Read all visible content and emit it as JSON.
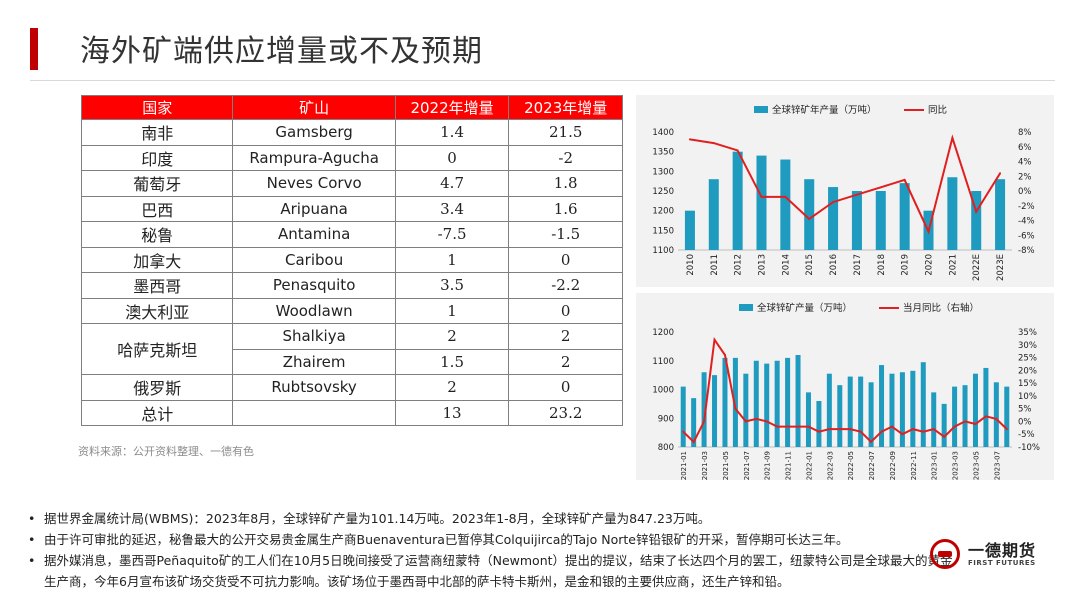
{
  "title": "海外矿端供应增量或不及预期",
  "table": {
    "headers": [
      "国家",
      "矿山",
      "2022年增量",
      "2023年增量"
    ],
    "rows": [
      {
        "country": "南非",
        "mine": "Gamsberg",
        "y2022": "1.4",
        "y2023": "21.5"
      },
      {
        "country": "印度",
        "mine": "Rampura-Agucha",
        "y2022": "0",
        "y2023": "-2"
      },
      {
        "country": "葡萄牙",
        "mine": "Neves Corvo",
        "y2022": "4.7",
        "y2023": "1.8"
      },
      {
        "country": "巴西",
        "mine": "Aripuana",
        "y2022": "3.4",
        "y2023": "1.6"
      },
      {
        "country": "秘鲁",
        "mine": "Antamina",
        "y2022": "-7.5",
        "y2023": "-1.5"
      },
      {
        "country": "加拿大",
        "mine": "Caribou",
        "y2022": "1",
        "y2023": "0"
      },
      {
        "country": "墨西哥",
        "mine": "Penasquito",
        "y2022": "3.5",
        "y2023": "-2.2"
      },
      {
        "country": "澳大利亚",
        "mine": "Woodlawn",
        "y2022": "1",
        "y2023": "0"
      },
      {
        "country": "哈萨克斯坦",
        "mine": "Shalkiya",
        "y2022": "2",
        "y2023": "2"
      },
      {
        "country": "",
        "mine": "Zhairem",
        "y2022": "1.5",
        "y2023": "2"
      },
      {
        "country": "俄罗斯",
        "mine": "Rubtsovsky",
        "y2022": "2",
        "y2023": "0"
      },
      {
        "country": "总计",
        "mine": "",
        "y2022": "13",
        "y2023": "23.2"
      }
    ]
  },
  "source": "资料来源：公开资料整理、一德有色",
  "colors": {
    "bar": "#1f9bbf",
    "line": "#e02020",
    "accent": "#c00000"
  },
  "chart_data": [
    {
      "type": "bar+line",
      "legend": [
        "全球锌矿年产量（万吨）",
        "同比"
      ],
      "categories": [
        "2010",
        "2011",
        "2012",
        "2013",
        "2014",
        "2015",
        "2016",
        "2017",
        "2018",
        "2019",
        "2020",
        "2021",
        "2022E",
        "2023E"
      ],
      "series": [
        {
          "name": "全球锌矿年产量（万吨）",
          "axis": "left",
          "values": [
            1200,
            1280,
            1350,
            1340,
            1330,
            1280,
            1260,
            1250,
            1250,
            1270,
            1200,
            1285,
            1250,
            1280
          ]
        },
        {
          "name": "同比",
          "axis": "right",
          "values": [
            7.0,
            6.5,
            5.5,
            -0.8,
            -0.8,
            -3.8,
            -1.5,
            -0.5,
            0.5,
            1.5,
            -5.5,
            7.2,
            -2.8,
            2.4
          ]
        }
      ],
      "ylim_left": [
        1100,
        1400
      ],
      "yticks_left": [
        "1400",
        "1350",
        "1300",
        "1250",
        "1200",
        "1150",
        "1100"
      ],
      "ylim_right": [
        -8,
        8
      ],
      "yticks_right": [
        "8%",
        "6%",
        "4%",
        "2%",
        "0%",
        "-2%",
        "-4%",
        "-6%",
        "-8%"
      ]
    },
    {
      "type": "bar+line",
      "legend": [
        "全球锌矿产量（万吨）",
        "当月同比（右轴）"
      ],
      "categories": [
        "2021-01",
        "2021-02",
        "2021-03",
        "2021-04",
        "2021-05",
        "2021-06",
        "2021-07",
        "2021-08",
        "2021-09",
        "2021-10",
        "2021-11",
        "2021-12",
        "2022-01",
        "2022-02",
        "2022-03",
        "2022-04",
        "2022-05",
        "2022-06",
        "2022-07",
        "2022-08",
        "2022-09",
        "2022-10",
        "2022-11",
        "2022-12",
        "2023-01",
        "2023-02",
        "2023-03",
        "2023-04",
        "2023-05",
        "2023-06",
        "2023-07",
        "2023-08"
      ],
      "x_tick_labels": [
        "2021-01",
        "2021-03",
        "2021-05",
        "2021-07",
        "2021-09",
        "2021-11",
        "2022-01",
        "2022-03",
        "2022-05",
        "2022-07",
        "2022-09",
        "2022-11",
        "2023-01",
        "2023-03",
        "2023-05",
        "2023-07"
      ],
      "series": [
        {
          "name": "全球锌矿产量（万吨）",
          "axis": "left",
          "values": [
            1010,
            970,
            1060,
            1050,
            1110,
            1110,
            1055,
            1100,
            1090,
            1100,
            1110,
            1120,
            990,
            960,
            1055,
            1015,
            1045,
            1045,
            1025,
            1085,
            1055,
            1060,
            1065,
            1095,
            990,
            950,
            1010,
            1015,
            1055,
            1075,
            1025,
            1010
          ]
        },
        {
          "name": "当月同比（右轴）",
          "axis": "right",
          "values": [
            -4,
            -8,
            0,
            32,
            26,
            5,
            0,
            1,
            0,
            -2,
            -2,
            -2,
            -2,
            -4,
            -3,
            -3,
            -3,
            -4,
            -8,
            -4,
            -2,
            -5,
            -3,
            -4,
            -3,
            -6,
            -2,
            0,
            -1,
            2,
            1,
            -3
          ]
        }
      ],
      "ylim_left": [
        800,
        1200
      ],
      "yticks_left": [
        "1200",
        "1100",
        "1000",
        "900",
        "800"
      ],
      "ylim_right": [
        -10,
        35
      ],
      "yticks_right": [
        "35%",
        "30%",
        "25%",
        "20%",
        "15%",
        "10%",
        "5%",
        "0%",
        "-5%",
        "-10%"
      ]
    }
  ],
  "notes": [
    "据世界金属统计局(WBMS)：2023年8月，全球锌矿产量为101.14万吨。2023年1-8月，全球锌矿产量为847.23万吨。",
    "由于许可审批的延迟，秘鲁最大的公开交易贵金属生产商Buenaventura已暂停其Colquijirca的Tajo Norte锌铅银矿的开采，暂停期可长达三年。",
    "据外媒消息，墨西哥Peñaquito矿的工人们在10月5日晚间接受了运营商纽蒙特（Newmont）提出的提议，结束了长达四个月的罢工，纽蒙特公司是全球最大的黄金生产商，今年6月宣布该矿场交货受不可抗力影响。该矿场位于墨西哥中北部的萨卡特卡斯州，是金和银的主要供应商，还生产锌和铅。"
  ],
  "bullet": "•",
  "logo": {
    "cn": "一德期货",
    "en": "FIRST FUTURES"
  }
}
